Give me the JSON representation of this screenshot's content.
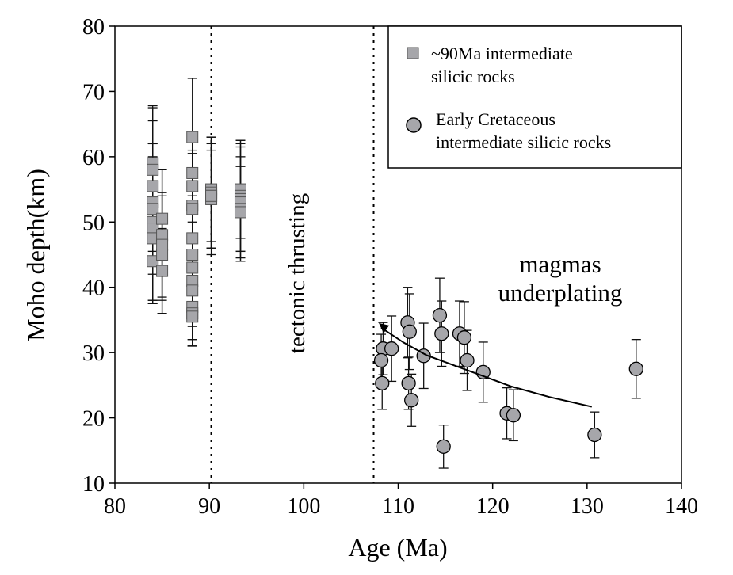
{
  "chart_data": {
    "type": "scatter",
    "xlabel": "Age (Ma)",
    "ylabel": "Moho depth(km)",
    "xlim": [
      80,
      140
    ],
    "ylim": [
      10,
      80
    ],
    "xticks": [
      80,
      90,
      100,
      110,
      120,
      130,
      140
    ],
    "yticks": [
      10,
      20,
      30,
      40,
      50,
      60,
      70,
      80
    ],
    "grid": false,
    "legend_placement": "top-right",
    "reference_lines_x": [
      90.2,
      107.4
    ],
    "annotations": [
      {
        "text": "tectonic thrusting",
        "x": 101,
        "y": 45
      },
      {
        "text": "magmas",
        "x": 119.5,
        "y": 44
      },
      {
        "text": "underplating",
        "x": 119.5,
        "y": 40
      }
    ],
    "trend_curve": [
      [
        130.5,
        21.7
      ],
      [
        126,
        23.2
      ],
      [
        122,
        24.8
      ],
      [
        119,
        26.4
      ],
      [
        116,
        28
      ],
      [
        113,
        29.6
      ],
      [
        110.5,
        31.6
      ],
      [
        108.2,
        33.8
      ]
    ],
    "series": [
      {
        "name": "~90Ma intermediate silicic rocks",
        "legend_lines": [
          "~90Ma intermediate",
          "silicic rocks"
        ],
        "marker": "square",
        "color": "#a6a6aa",
        "points": [
          {
            "x": 84,
            "y": 59,
            "err": 8.8
          },
          {
            "x": 84,
            "y": 58,
            "err": 9.5
          },
          {
            "x": 84,
            "y": 55.5,
            "err": 10
          },
          {
            "x": 84,
            "y": 53,
            "err": 9
          },
          {
            "x": 84,
            "y": 52,
            "err": 10
          },
          {
            "x": 84,
            "y": 50,
            "err": 12
          },
          {
            "x": 84,
            "y": 49,
            "err": 11
          },
          {
            "x": 84,
            "y": 47.5,
            "err": 10
          },
          {
            "x": 84,
            "y": 44,
            "err": 6.5
          },
          {
            "x": 85,
            "y": 50.5,
            "err": 7.5
          },
          {
            "x": 85,
            "y": 48,
            "err": 10
          },
          {
            "x": 85,
            "y": 46.5,
            "err": 8
          },
          {
            "x": 85,
            "y": 45,
            "err": 9
          },
          {
            "x": 85,
            "y": 42.5,
            "err": 6.5
          },
          {
            "x": 88.2,
            "y": 63,
            "err": 9
          },
          {
            "x": 88.2,
            "y": 57.5,
            "err": 5
          },
          {
            "x": 88.2,
            "y": 55.5,
            "err": 8
          },
          {
            "x": 88.2,
            "y": 52.5,
            "err": 8
          },
          {
            "x": 88.2,
            "y": 52,
            "err": 9
          },
          {
            "x": 88.2,
            "y": 47.5,
            "err": 10
          },
          {
            "x": 88.2,
            "y": 45,
            "err": 11
          },
          {
            "x": 88.2,
            "y": 43,
            "err": 11
          },
          {
            "x": 88.2,
            "y": 41,
            "err": 9
          },
          {
            "x": 88.2,
            "y": 39.5,
            "err": 8.5
          },
          {
            "x": 88.2,
            "y": 37,
            "err": 6
          },
          {
            "x": 88.2,
            "y": 36,
            "err": 5
          },
          {
            "x": 88.2,
            "y": 35.5,
            "err": 4.5
          },
          {
            "x": 90.2,
            "y": 55,
            "err": 8
          },
          {
            "x": 90.2,
            "y": 54.5,
            "err": 8.5
          },
          {
            "x": 90.2,
            "y": 54,
            "err": 8
          },
          {
            "x": 90.2,
            "y": 53.5,
            "err": 7.5
          },
          {
            "x": 90.2,
            "y": 54,
            "err": 9
          },
          {
            "x": 93.3,
            "y": 55,
            "err": 7.5
          },
          {
            "x": 93.3,
            "y": 54,
            "err": 8.5
          },
          {
            "x": 93.3,
            "y": 53.5,
            "err": 8
          },
          {
            "x": 93.3,
            "y": 53,
            "err": 9
          },
          {
            "x": 93.3,
            "y": 52,
            "err": 8
          },
          {
            "x": 93.3,
            "y": 51.5,
            "err": 7
          }
        ]
      },
      {
        "name": "Early Cretaceous intermediate silicic rocks",
        "legend_lines": [
          "Early Cretaceous",
          "intermediate silicic rocks"
        ],
        "marker": "circle",
        "color": "#a6a6aa",
        "points": [
          {
            "x": 108.4,
            "y": 30.6,
            "err": 4
          },
          {
            "x": 108.2,
            "y": 28.8,
            "err": 4
          },
          {
            "x": 108.3,
            "y": 25.3,
            "err": 4
          },
          {
            "x": 109.3,
            "y": 30.6,
            "err": 5
          },
          {
            "x": 111,
            "y": 34.6,
            "err": 5.4
          },
          {
            "x": 111.2,
            "y": 33.2,
            "err": 5.8
          },
          {
            "x": 111.1,
            "y": 25.3,
            "err": 4
          },
          {
            "x": 111.4,
            "y": 22.7,
            "err": 4
          },
          {
            "x": 112.7,
            "y": 29.5,
            "err": 5
          },
          {
            "x": 114.4,
            "y": 35.7,
            "err": 5.7
          },
          {
            "x": 114.6,
            "y": 32.9,
            "err": 5
          },
          {
            "x": 114.8,
            "y": 15.6,
            "err": 3.3
          },
          {
            "x": 116.5,
            "y": 32.9,
            "err": 5
          },
          {
            "x": 117,
            "y": 32.3,
            "err": 5.5
          },
          {
            "x": 117.3,
            "y": 28.8,
            "err": 4.6
          },
          {
            "x": 119,
            "y": 27,
            "err": 4.6
          },
          {
            "x": 121.5,
            "y": 20.7,
            "err": 3.9
          },
          {
            "x": 122.2,
            "y": 20.4,
            "err": 3.9
          },
          {
            "x": 130.8,
            "y": 17.4,
            "err": 3.5
          },
          {
            "x": 135.2,
            "y": 27.5,
            "err": 4.5
          }
        ]
      }
    ]
  }
}
